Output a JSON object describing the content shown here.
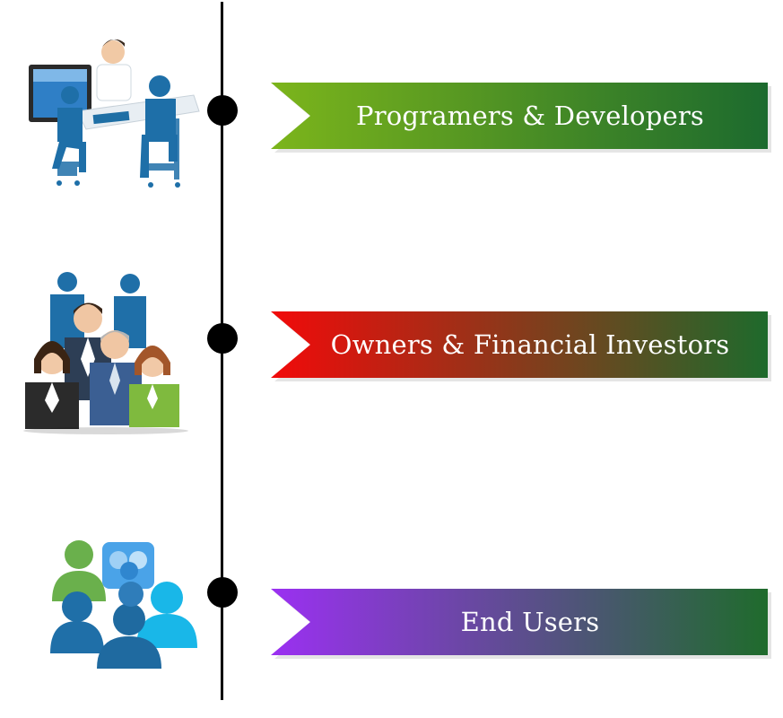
{
  "timeline": {
    "items": [
      {
        "label": "Programers & Developers",
        "icon": "developers-at-computer-icon",
        "gradient": [
          "#7cb51b",
          "#1c6a2e"
        ]
      },
      {
        "label": "Owners & Financial Investors",
        "icon": "business-people-group-icon",
        "gradient": [
          "#f20a0a",
          "#1e6a2c"
        ]
      },
      {
        "label": "End Users",
        "icon": "users-group-icon",
        "gradient": [
          "#9b30f2",
          "#1f6b2c"
        ]
      }
    ]
  }
}
